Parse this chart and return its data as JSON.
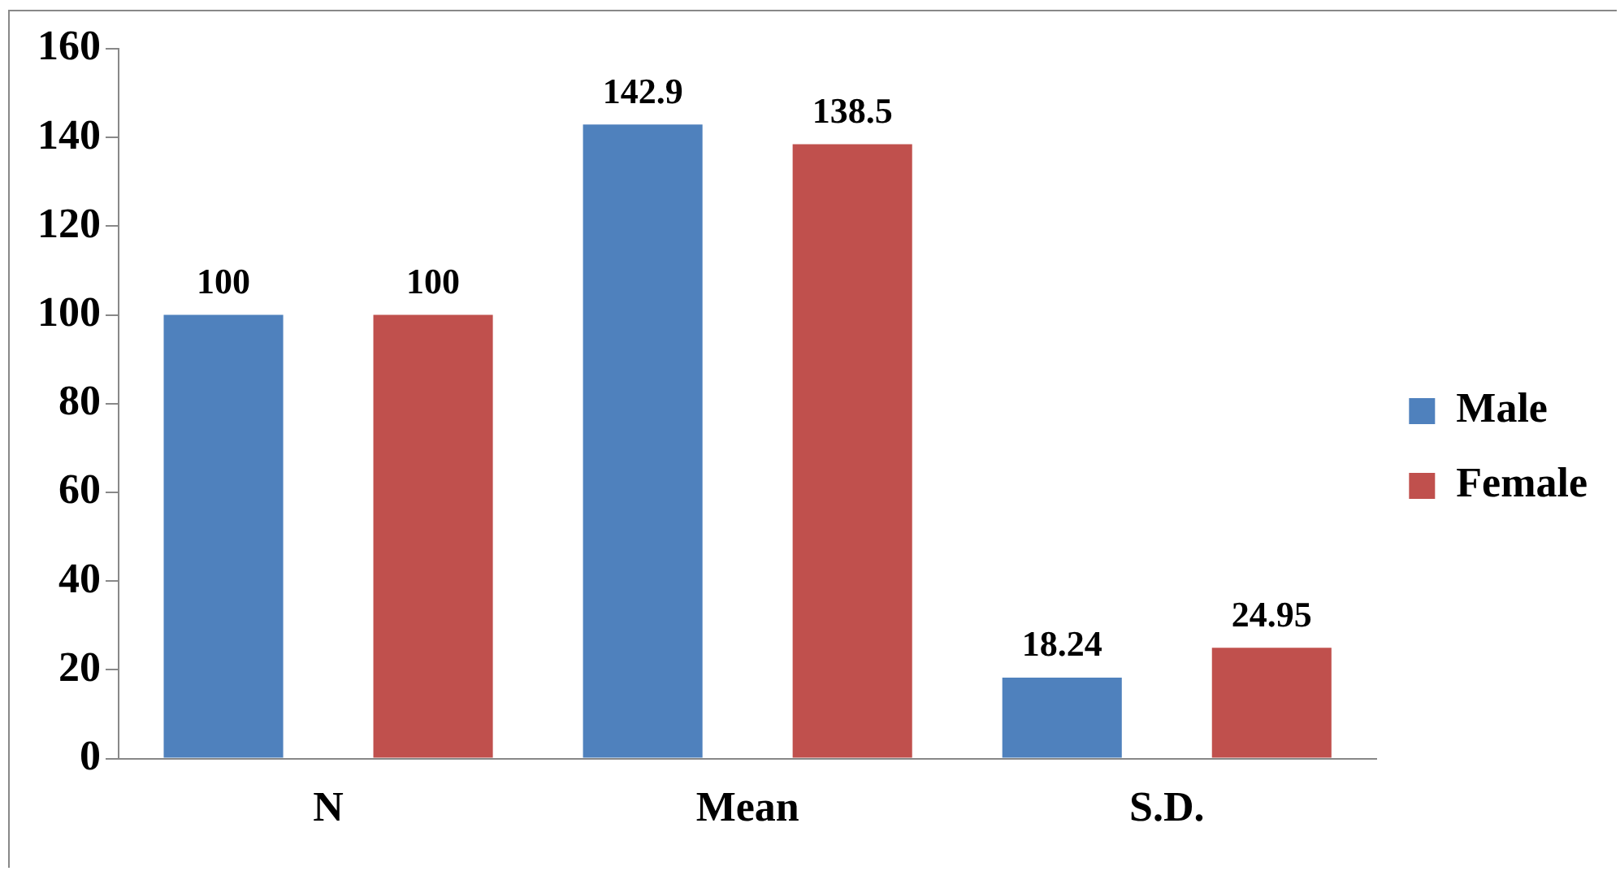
{
  "chart_data": {
    "type": "bar",
    "categories": [
      "N",
      "Mean",
      "S.D."
    ],
    "series": [
      {
        "name": "Male",
        "color": "#4f81bd",
        "values": [
          100,
          142.9,
          18.24
        ]
      },
      {
        "name": "Female",
        "color": "#c0504d",
        "values": [
          100,
          138.5,
          24.95
        ]
      }
    ],
    "ylim": [
      0,
      160
    ],
    "yticks": [
      0,
      20,
      40,
      60,
      80,
      100,
      120,
      140,
      160
    ],
    "grid": false,
    "legend": "right",
    "data_labels": true
  }
}
